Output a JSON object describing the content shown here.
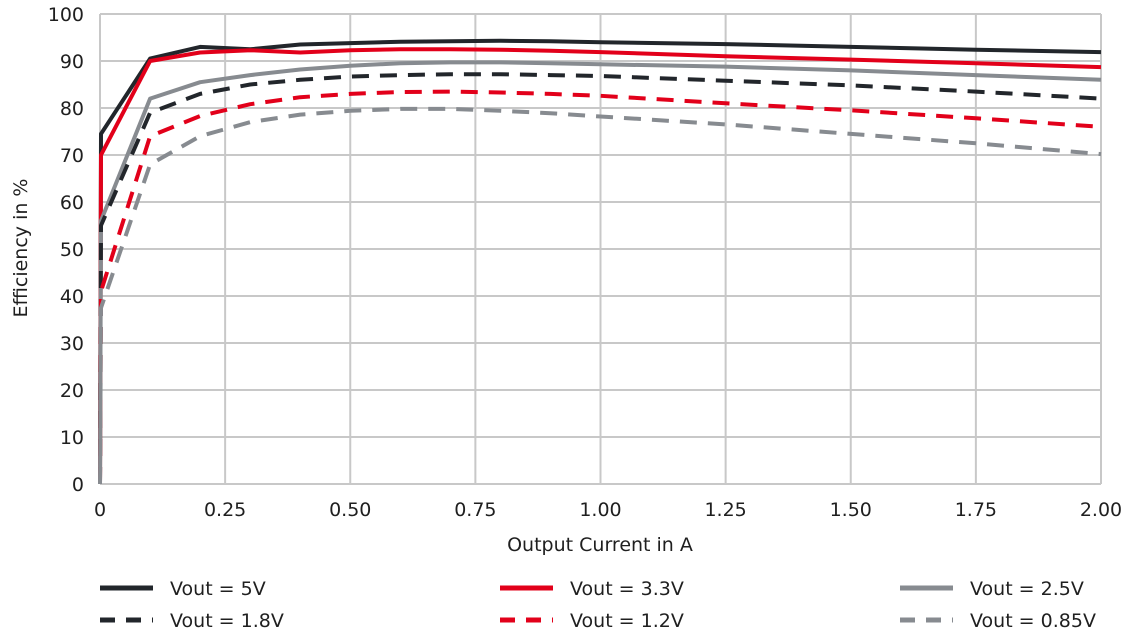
{
  "chart_data": {
    "type": "line",
    "xlabel": "Output Current in A",
    "ylabel": "Efficiency in %",
    "xlim": [
      0,
      2.0
    ],
    "ylim": [
      0,
      100
    ],
    "x_ticks": [
      "0",
      "0.25",
      "0.50",
      "0.75",
      "1.00",
      "1.25",
      "1.50",
      "1.75",
      "2.00"
    ],
    "x_tick_values": [
      0,
      0.25,
      0.5,
      0.75,
      1.0,
      1.25,
      1.5,
      1.75,
      2.0
    ],
    "y_ticks": [
      "0",
      "10",
      "20",
      "30",
      "40",
      "50",
      "60",
      "70",
      "80",
      "90",
      "100"
    ],
    "y_tick_values": [
      0,
      10,
      20,
      30,
      40,
      50,
      60,
      70,
      80,
      90,
      100
    ],
    "grid": true,
    "legend_position": "bottom",
    "series": [
      {
        "name": "Vout = 5V",
        "color": "#22262b",
        "dash": "solid",
        "x": [
          0,
          0.002,
          0.1,
          0.2,
          0.3,
          0.4,
          0.5,
          0.6,
          0.7,
          0.8,
          0.9,
          1.0,
          1.25,
          1.5,
          1.75,
          2.0
        ],
        "y": [
          0,
          74.5,
          90.5,
          93.0,
          92.5,
          93.5,
          93.8,
          94.1,
          94.2,
          94.3,
          94.2,
          94.0,
          93.6,
          93.0,
          92.4,
          91.9
        ]
      },
      {
        "name": "Vout = 3.3V",
        "color": "#e2001a",
        "dash": "solid",
        "x": [
          0,
          0.002,
          0.1,
          0.2,
          0.3,
          0.4,
          0.5,
          0.6,
          0.7,
          0.8,
          0.9,
          1.0,
          1.25,
          1.5,
          1.75,
          2.0
        ],
        "y": [
          0,
          70.0,
          90.0,
          91.8,
          92.3,
          91.8,
          92.3,
          92.5,
          92.5,
          92.4,
          92.2,
          91.9,
          91.0,
          90.3,
          89.5,
          88.7
        ]
      },
      {
        "name": "Vout = 2.5V",
        "color": "#878b90",
        "dash": "solid",
        "x": [
          0,
          0.002,
          0.1,
          0.2,
          0.3,
          0.4,
          0.5,
          0.6,
          0.7,
          0.8,
          0.9,
          1.0,
          1.25,
          1.5,
          1.75,
          2.0
        ],
        "y": [
          0,
          56.0,
          82.0,
          85.5,
          87.0,
          88.2,
          89.0,
          89.5,
          89.7,
          89.7,
          89.5,
          89.3,
          88.8,
          88.0,
          87.0,
          86.0
        ]
      },
      {
        "name": "Vout = 1.8V",
        "color": "#22262b",
        "dash": "dashed",
        "x": [
          0,
          0.002,
          0.1,
          0.2,
          0.3,
          0.4,
          0.5,
          0.6,
          0.7,
          0.8,
          0.9,
          1.0,
          1.25,
          1.5,
          1.75,
          2.0
        ],
        "y": [
          0,
          55.0,
          79.0,
          83.0,
          85.0,
          86.0,
          86.7,
          87.0,
          87.2,
          87.2,
          87.0,
          86.8,
          85.8,
          84.8,
          83.5,
          82.0
        ]
      },
      {
        "name": "Vout = 1.2V",
        "color": "#e2001a",
        "dash": "dashed",
        "x": [
          0,
          0.002,
          0.1,
          0.2,
          0.3,
          0.4,
          0.5,
          0.6,
          0.7,
          0.8,
          0.9,
          1.0,
          1.25,
          1.5,
          1.75,
          2.0
        ],
        "y": [
          0,
          41.0,
          74.0,
          78.3,
          80.8,
          82.3,
          83.0,
          83.4,
          83.5,
          83.3,
          83.0,
          82.6,
          81.0,
          79.5,
          77.8,
          76.0
        ]
      },
      {
        "name": "Vout = 0.85V",
        "color": "#878b90",
        "dash": "dashed",
        "x": [
          0,
          0.002,
          0.1,
          0.2,
          0.3,
          0.4,
          0.5,
          0.6,
          0.7,
          0.8,
          0.9,
          1.0,
          1.25,
          1.5,
          1.75,
          2.0
        ],
        "y": [
          0,
          37.5,
          68.0,
          74.0,
          77.0,
          78.6,
          79.4,
          79.8,
          79.8,
          79.4,
          78.9,
          78.2,
          76.5,
          74.5,
          72.5,
          70.2
        ]
      }
    ]
  }
}
